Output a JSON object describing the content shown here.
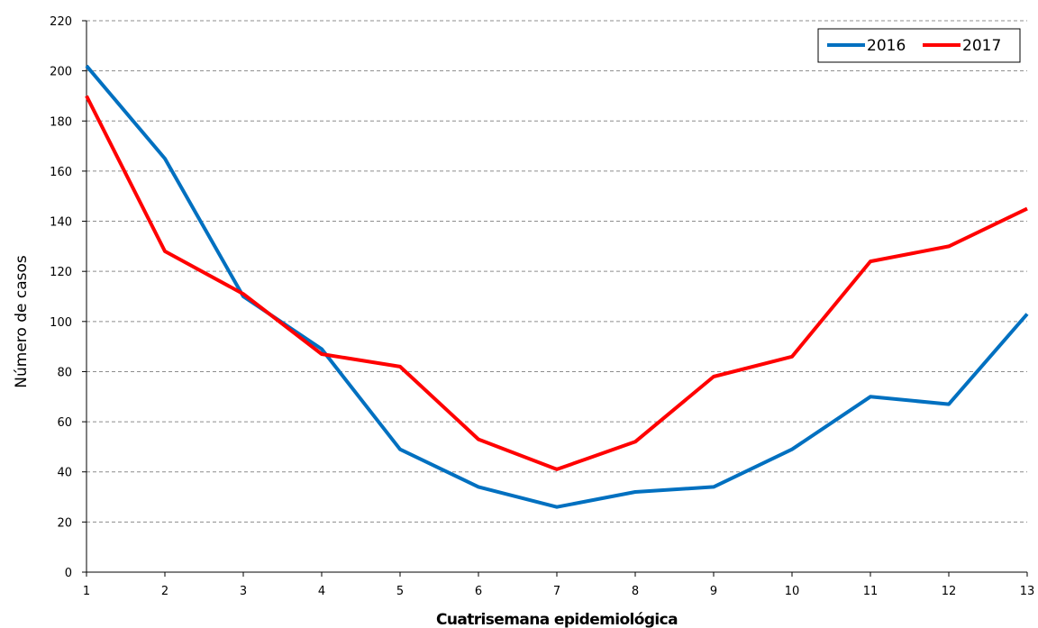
{
  "chart_data": {
    "type": "line",
    "title": "",
    "xlabel": "Cuatrisemana epidemiológica",
    "ylabel": "Número de casos",
    "x": [
      1,
      2,
      3,
      4,
      5,
      6,
      7,
      8,
      9,
      10,
      11,
      12,
      13
    ],
    "x_ticks": [
      "1",
      "2",
      "3",
      "4",
      "5",
      "6",
      "7",
      "8",
      "9",
      "10",
      "11",
      "12",
      "13"
    ],
    "ylim": [
      0,
      220
    ],
    "y_ticks": [
      "0",
      "20",
      "40",
      "60",
      "80",
      "100",
      "120",
      "140",
      "160",
      "180",
      "200",
      "220"
    ],
    "grid": true,
    "legend_position": "top-right",
    "series": [
      {
        "name": "2016",
        "color": "#0070c0",
        "values": [
          202,
          165,
          110,
          89,
          49,
          34,
          26,
          32,
          34,
          49,
          70,
          67,
          103
        ]
      },
      {
        "name": "2017",
        "color": "#ff0000",
        "values": [
          190,
          128,
          111,
          87,
          82,
          53,
          41,
          52,
          78,
          86,
          124,
          130,
          145
        ]
      }
    ]
  }
}
